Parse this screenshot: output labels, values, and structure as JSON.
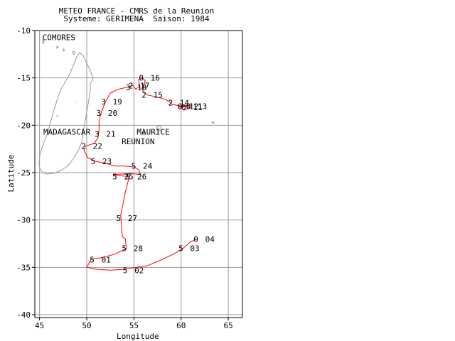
{
  "title": {
    "line1": "METEO FRANCE - CMRS de la Reunion",
    "line2": "Systeme: GERIMENA  Saison: 1984"
  },
  "axes": {
    "xlabel": "Longitude",
    "ylabel": "Latitude",
    "xlim": [
      44.5,
      66.5
    ],
    "ylim": [
      -40.3,
      -10
    ],
    "xticks": [
      45,
      50,
      55,
      60,
      65
    ],
    "yticks": [
      -10,
      -15,
      -20,
      -25,
      -30,
      -35,
      -40
    ],
    "grid": true
  },
  "colors": {
    "track": "#ff0000",
    "coast": "#999999",
    "grid": "#999999",
    "frame": "#000000"
  },
  "place_labels": [
    {
      "name": "COMORES",
      "lon": 45.3,
      "lat": -11.0
    },
    {
      "name": "MADAGASCAR",
      "lon": 45.4,
      "lat": -21.0
    },
    {
      "name": "MAURICE",
      "lon": 55.3,
      "lat": -21.0
    },
    {
      "name": "REUNION",
      "lon": 53.7,
      "lat": -22.0
    }
  ],
  "chart_data": {
    "type": "track",
    "track": [
      [
        61.8,
        -32.0
      ],
      [
        61.0,
        -32.3
      ],
      [
        60.2,
        -33.0
      ],
      [
        59.2,
        -33.6
      ],
      [
        57.7,
        -34.3
      ],
      [
        56.5,
        -34.8
      ],
      [
        55.3,
        -35.0
      ],
      [
        54.0,
        -35.2
      ],
      [
        52.5,
        -35.3
      ],
      [
        51.0,
        -35.2
      ],
      [
        50.0,
        -35.0
      ],
      [
        50.5,
        -34.1
      ],
      [
        51.5,
        -34.0
      ],
      [
        53.0,
        -33.6
      ],
      [
        54.2,
        -33.0
      ],
      [
        54.1,
        -32.0
      ],
      [
        53.8,
        -31.8
      ],
      [
        53.7,
        -31.0
      ],
      [
        53.6,
        -29.5
      ],
      [
        54.1,
        -27.0
      ],
      [
        54.5,
        -25.5
      ],
      [
        54.2,
        -25.4
      ],
      [
        53.3,
        -25.3
      ],
      [
        52.8,
        -25.2
      ],
      [
        54.6,
        -25.1
      ],
      [
        55.7,
        -25.2
      ],
      [
        55.5,
        -24.7
      ],
      [
        55.0,
        -24.4
      ],
      [
        54.0,
        -24.3
      ],
      [
        53.0,
        -24.3
      ],
      [
        52.0,
        -24.0
      ],
      [
        50.9,
        -23.8
      ],
      [
        50.1,
        -23.4
      ],
      [
        49.7,
        -22.6
      ],
      [
        49.9,
        -22.2
      ],
      [
        50.8,
        -21.9
      ],
      [
        51.2,
        -21.3
      ],
      [
        51.3,
        -20.5
      ],
      [
        51.3,
        -19.5
      ],
      [
        51.6,
        -18.5
      ],
      [
        52.0,
        -17.5
      ],
      [
        52.5,
        -16.6
      ],
      [
        53.3,
        -16.2
      ],
      [
        54.2,
        -16.0
      ],
      [
        54.9,
        -15.8
      ],
      [
        55.2,
        -16.2
      ],
      [
        55.6,
        -15.9
      ],
      [
        55.5,
        -15.2
      ],
      [
        55.9,
        -15.0
      ],
      [
        56.2,
        -15.3
      ],
      [
        55.9,
        -16.3
      ],
      [
        56.4,
        -16.8
      ],
      [
        57.4,
        -17.0
      ],
      [
        58.4,
        -17.3
      ],
      [
        59.1,
        -17.8
      ],
      [
        60.1,
        -18.0
      ],
      [
        61.0,
        -18.1
      ],
      [
        60.3,
        -18.4
      ],
      [
        59.8,
        -18.0
      ],
      [
        61.0,
        -17.9
      ]
    ],
    "fixes": [
      {
        "date": "04",
        "intensity": "0",
        "lon": 61.8,
        "lat": -32.0
      },
      {
        "date": "03",
        "intensity": "5",
        "lon": 60.2,
        "lat": -33.0
      },
      {
        "date": "02",
        "intensity": "5",
        "lon": 54.3,
        "lat": -35.3
      },
      {
        "date": "01",
        "intensity": "5",
        "lon": 50.8,
        "lat": -34.2
      },
      {
        "date": "28",
        "intensity": "5",
        "lon": 54.2,
        "lat": -33.0
      },
      {
        "date": "27",
        "intensity": "5",
        "lon": 53.6,
        "lat": -29.8
      },
      {
        "date": "26",
        "intensity": "5",
        "lon": 54.6,
        "lat": -25.4
      },
      {
        "date": "25",
        "intensity": "5",
        "lon": 53.2,
        "lat": -25.4
      },
      {
        "date": "24",
        "intensity": "5",
        "lon": 55.2,
        "lat": -24.3
      },
      {
        "date": "23",
        "intensity": "5",
        "lon": 50.9,
        "lat": -23.8
      },
      {
        "date": "22",
        "intensity": "2",
        "lon": 49.9,
        "lat": -22.2
      },
      {
        "date": "21",
        "intensity": "3",
        "lon": 51.3,
        "lat": -20.9
      },
      {
        "date": "20",
        "intensity": "3",
        "lon": 51.5,
        "lat": -18.7
      },
      {
        "date": "19",
        "intensity": "3",
        "lon": 52.0,
        "lat": -17.5
      },
      {
        "date": "18",
        "intensity": "3",
        "lon": 54.6,
        "lat": -16.0
      },
      {
        "date": "17",
        "intensity": "2",
        "lon": 54.9,
        "lat": -15.8
      },
      {
        "date": "16",
        "intensity": "0",
        "lon": 56.0,
        "lat": -15.0
      },
      {
        "date": "15",
        "intensity": "2",
        "lon": 56.3,
        "lat": -16.8
      },
      {
        "date": "14",
        "intensity": "2",
        "lon": 59.1,
        "lat": -17.6
      },
      {
        "date": "13",
        "intensity": "0",
        "lon": 61.0,
        "lat": -18.0
      },
      {
        "date": "12",
        "intensity": "0",
        "lon": 60.1,
        "lat": -18.0
      },
      {
        "date": "11",
        "intensity": "0",
        "lon": 60.5,
        "lat": -18.1
      }
    ]
  }
}
